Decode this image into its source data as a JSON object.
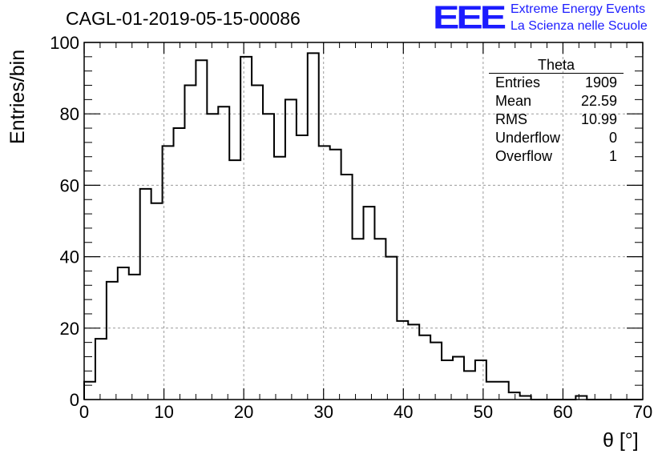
{
  "title": "CAGL-01-2019-05-15-00086",
  "logo": {
    "mark": "EEE",
    "line1": "Extreme Energy Events",
    "line2": "La Scienza nelle Scuole",
    "color": "#1c1cff"
  },
  "stats_box": {
    "title": "Theta",
    "rows": [
      {
        "label": "Entries",
        "value": "1909"
      },
      {
        "label": "Mean",
        "value": "22.59"
      },
      {
        "label": "RMS",
        "value": "10.99"
      },
      {
        "label": "Underflow",
        "value": "0"
      },
      {
        "label": "Overflow",
        "value": "1"
      }
    ]
  },
  "chart_data": {
    "type": "bar",
    "style": "step histogram",
    "xlabel": "θ [°]",
    "ylabel": "Entries/bin",
    "xlim": [
      0,
      70
    ],
    "ylim": [
      0,
      100
    ],
    "x_ticks": [
      "0",
      "10",
      "20",
      "30",
      "40",
      "50",
      "60",
      "70"
    ],
    "y_ticks": [
      "0",
      "20",
      "40",
      "60",
      "80",
      "100"
    ],
    "grid": true,
    "bin_width": 1.4,
    "bin_edges_start": 0,
    "values": [
      5,
      17,
      33,
      37,
      35,
      59,
      55,
      71,
      76,
      88,
      95,
      80,
      82,
      67,
      96,
      88,
      80,
      68,
      84,
      74,
      97,
      71,
      70,
      63,
      45,
      54,
      45,
      40,
      22,
      21,
      18,
      16,
      11,
      12,
      8,
      11,
      5,
      5,
      2,
      1,
      0,
      0,
      0,
      0,
      1,
      0,
      0,
      0,
      0,
      0
    ]
  }
}
